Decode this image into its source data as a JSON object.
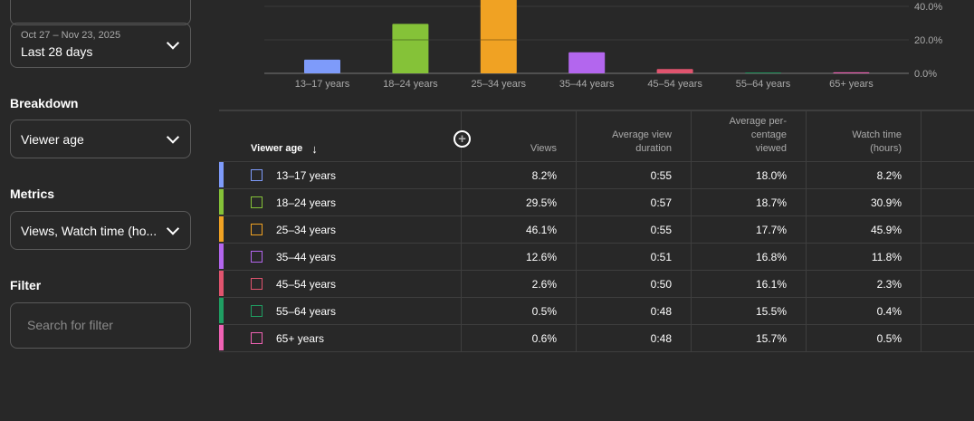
{
  "sidebar": {
    "date_range": {
      "dates": "Oct 27 – Nov 23, 2025",
      "label": "Last 28 days"
    },
    "breakdown": {
      "title": "Breakdown",
      "value": "Viewer age"
    },
    "metrics": {
      "title": "Metrics",
      "value": "Views, Watch time (ho..."
    },
    "filter": {
      "title": "Filter",
      "placeholder": "Search for filter"
    }
  },
  "chart_data": {
    "type": "bar",
    "categories": [
      "13–17 years",
      "18–24 years",
      "25–34 years",
      "35–44 years",
      "45–54 years",
      "55–64 years",
      "65+ years"
    ],
    "values": [
      8.2,
      29.5,
      46.1,
      12.6,
      2.6,
      0.5,
      0.6
    ],
    "colors": [
      "#7e9bfa",
      "#85c238",
      "#f0a223",
      "#b366ee",
      "#e0546e",
      "#1f9e62",
      "#f062b4"
    ],
    "yticks": [
      "0.0%",
      "20.0%",
      "40.0%"
    ],
    "ylim": [
      0,
      40
    ]
  },
  "table": {
    "headers": [
      "Viewer age",
      "Views",
      "Average view duration",
      "Average per- centage viewed",
      "Watch time (hours)"
    ],
    "rows": [
      [
        "13–17 years",
        "8.2%",
        "0:55",
        "18.0%",
        "8.2%"
      ],
      [
        "18–24 years",
        "29.5%",
        "0:57",
        "18.7%",
        "30.9%"
      ],
      [
        "25–34 years",
        "46.1%",
        "0:55",
        "17.7%",
        "45.9%"
      ],
      [
        "35–44 years",
        "12.6%",
        "0:51",
        "16.8%",
        "11.8%"
      ],
      [
        "45–54 years",
        "2.6%",
        "0:50",
        "16.1%",
        "2.3%"
      ],
      [
        "55–64 years",
        "0.5%",
        "0:48",
        "15.5%",
        "0.4%"
      ],
      [
        "65+ years",
        "0.6%",
        "0:48",
        "15.7%",
        "0.5%"
      ]
    ]
  }
}
